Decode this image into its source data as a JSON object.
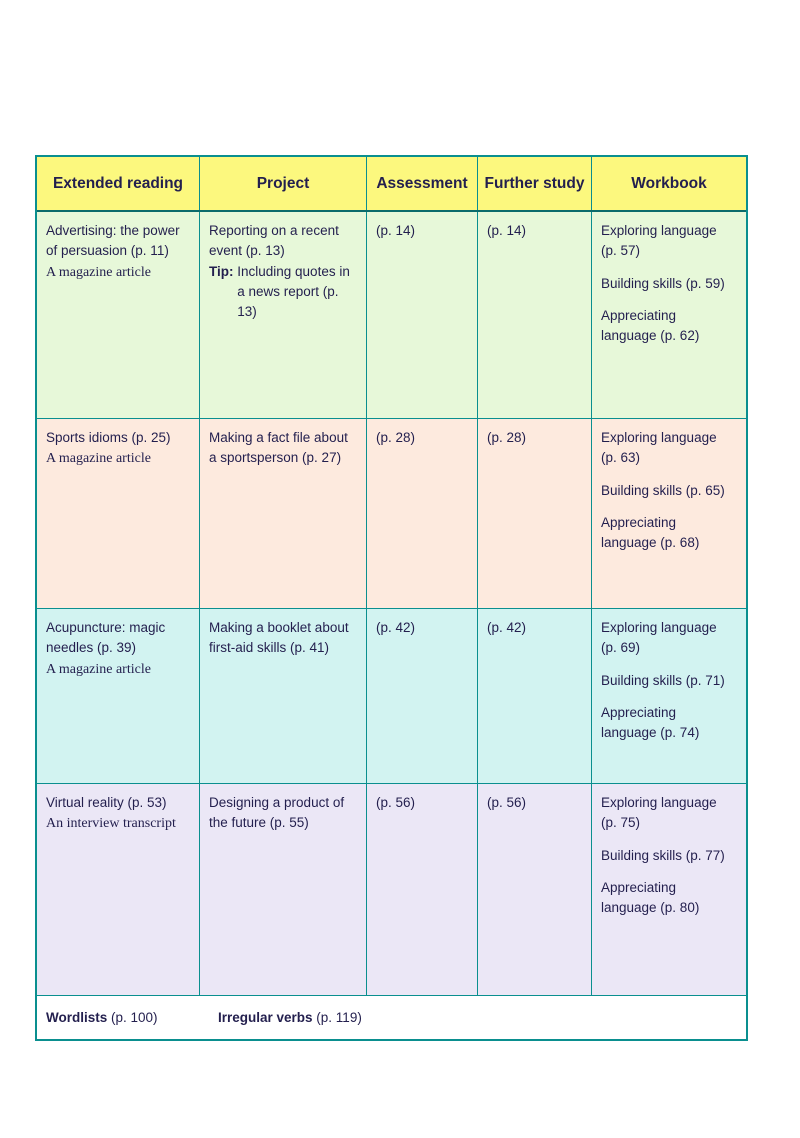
{
  "colors": {
    "header_bg": "#fcf87e",
    "row1_bg": "#e7f8d9",
    "row2_bg": "#fdeade",
    "row3_bg": "#d2f3f1",
    "row4_bg": "#ebe7f6",
    "border": "#0a8f8f",
    "text": "#231f4e"
  },
  "table": {
    "headers": [
      "Extended reading",
      "Project",
      "Assessment",
      "Further study",
      "Workbook"
    ],
    "rows": [
      {
        "extended_reading": {
          "title": "Advertising: the power of persuasion (p. 11)",
          "genre": "A magazine article"
        },
        "project": {
          "text": "Reporting on a recent event (p. 13)",
          "tip_label": "Tip: ",
          "tip_text": "Including quotes in a news report (p. 13)"
        },
        "assessment": "(p. 14)",
        "further_study": "(p. 14)",
        "workbook": [
          "Exploring language (p. 57)",
          "Building skills (p. 59)",
          "Appreciating language (p. 62)"
        ]
      },
      {
        "extended_reading": {
          "title": "Sports idioms (p. 25)",
          "genre": "A magazine article"
        },
        "project": {
          "text": "Making a fact file about a sportsperson (p. 27)"
        },
        "assessment": "(p. 28)",
        "further_study": "(p. 28)",
        "workbook": [
          "Exploring language (p. 63)",
          "Building skills (p. 65)",
          "Appreciating language (p. 68)"
        ]
      },
      {
        "extended_reading": {
          "title": "Acupuncture: magic needles (p. 39)",
          "genre": "A magazine article"
        },
        "project": {
          "text": "Making a booklet about first-aid skills (p. 41)"
        },
        "assessment": "(p. 42)",
        "further_study": "(p. 42)",
        "workbook": [
          "Exploring language (p. 69)",
          "Building skills (p. 71)",
          "Appreciating language (p. 74)"
        ]
      },
      {
        "extended_reading": {
          "title": "Virtual reality (p. 53)",
          "genre": "An interview transcript"
        },
        "project": {
          "text": "Designing a product of the future (p. 55)"
        },
        "assessment": "(p. 56)",
        "further_study": "(p. 56)",
        "workbook": [
          "Exploring language (p. 75)",
          "Building skills (p. 77)",
          "Appreciating language (p. 80)"
        ]
      }
    ],
    "footer": {
      "wordlists_label": "Wordlists",
      "wordlists_pages": " (p. 100)",
      "irregular_label": "Irregular verbs",
      "irregular_pages": " (p. 119)"
    }
  }
}
